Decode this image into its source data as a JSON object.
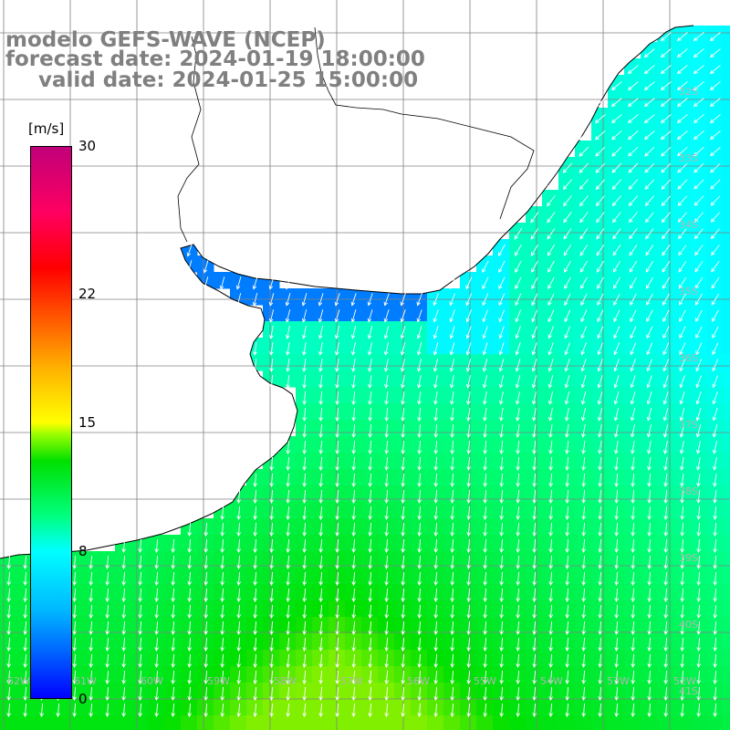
{
  "header": {
    "line1": "modelo GEFS-WAVE (NCEP)",
    "line2": "forecast date: 2024-01-19 18:00:00",
    "line3": "valid date: 2024-01-25 15:00:00"
  },
  "colorbar": {
    "unit": "[m/s]",
    "ticks": [
      {
        "value": 30,
        "label": "30"
      },
      {
        "value": 22,
        "label": "22"
      },
      {
        "value": 15,
        "label": "15"
      },
      {
        "value": 8,
        "label": "8"
      },
      {
        "value": 0,
        "label": "0"
      }
    ],
    "range": [
      0,
      30
    ]
  },
  "map": {
    "variable": "wind speed and direction",
    "latitude_labels": [
      "32S",
      "33S",
      "34S",
      "35S",
      "36S",
      "37S",
      "38S",
      "39S",
      "40S",
      "41S"
    ],
    "longitude_labels": [
      "62W",
      "61W",
      "60W",
      "59W",
      "58W",
      "57W",
      "56W",
      "55W",
      "54W",
      "53W",
      "52W"
    ],
    "colors": {
      "land": "#ffffff",
      "coast": "#000000",
      "grid": "#808080",
      "arrows": "#ffffff",
      "weak_wind": "#1e46ff",
      "moderate_wind": "#00ffff",
      "strong_wind": "#00e000"
    },
    "wind_field_summary": "northeasterly over the north-east, northerly over the central and southern ocean"
  }
}
